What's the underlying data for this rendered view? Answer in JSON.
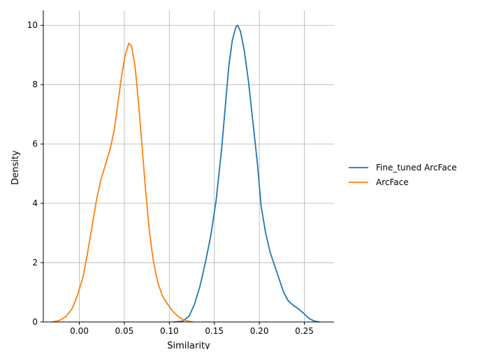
{
  "chart_data": {
    "type": "line",
    "title": "",
    "xlabel": "Similarity",
    "ylabel": "Density",
    "xlim": [
      -0.04,
      0.283
    ],
    "ylim": [
      0,
      10.5
    ],
    "grid": true,
    "legend_position": "right",
    "x_ticks": [
      0.0,
      0.05,
      0.1,
      0.15,
      0.2,
      0.25
    ],
    "x_tick_labels": [
      "0.00",
      "0.05",
      "0.10",
      "0.15",
      "0.20",
      "0.25"
    ],
    "y_ticks": [
      0,
      2,
      4,
      6,
      8,
      10
    ],
    "y_tick_labels": [
      "0",
      "2",
      "4",
      "6",
      "8",
      "10"
    ],
    "series": [
      {
        "name": "Fine_tuned ArcFace",
        "color": "#1f77b4",
        "points": [
          [
            0.105,
            0.0
          ],
          [
            0.115,
            0.03
          ],
          [
            0.122,
            0.2
          ],
          [
            0.128,
            0.6
          ],
          [
            0.134,
            1.2
          ],
          [
            0.14,
            2.0
          ],
          [
            0.146,
            2.9
          ],
          [
            0.152,
            4.1
          ],
          [
            0.158,
            5.8
          ],
          [
            0.162,
            7.2
          ],
          [
            0.166,
            8.6
          ],
          [
            0.17,
            9.5
          ],
          [
            0.174,
            9.95
          ],
          [
            0.176,
            10.0
          ],
          [
            0.179,
            9.8
          ],
          [
            0.183,
            9.2
          ],
          [
            0.188,
            8.1
          ],
          [
            0.193,
            6.7
          ],
          [
            0.198,
            5.3
          ],
          [
            0.202,
            3.9
          ],
          [
            0.207,
            3.0
          ],
          [
            0.212,
            2.35
          ],
          [
            0.217,
            1.9
          ],
          [
            0.222,
            1.45
          ],
          [
            0.227,
            1.0
          ],
          [
            0.232,
            0.72
          ],
          [
            0.237,
            0.58
          ],
          [
            0.243,
            0.45
          ],
          [
            0.249,
            0.3
          ],
          [
            0.255,
            0.12
          ],
          [
            0.261,
            0.03
          ],
          [
            0.267,
            0.0
          ]
        ]
      },
      {
        "name": "ArcFace",
        "color": "#ff7f0e",
        "points": [
          [
            -0.03,
            0.0
          ],
          [
            -0.022,
            0.05
          ],
          [
            -0.015,
            0.18
          ],
          [
            -0.008,
            0.45
          ],
          [
            -0.002,
            0.9
          ],
          [
            0.004,
            1.5
          ],
          [
            0.009,
            2.3
          ],
          [
            0.014,
            3.2
          ],
          [
            0.019,
            4.1
          ],
          [
            0.024,
            4.8
          ],
          [
            0.029,
            5.3
          ],
          [
            0.034,
            5.8
          ],
          [
            0.039,
            6.5
          ],
          [
            0.043,
            7.4
          ],
          [
            0.047,
            8.3
          ],
          [
            0.051,
            9.0
          ],
          [
            0.055,
            9.4
          ],
          [
            0.058,
            9.3
          ],
          [
            0.062,
            8.6
          ],
          [
            0.066,
            7.3
          ],
          [
            0.07,
            5.8
          ],
          [
            0.074,
            4.3
          ],
          [
            0.078,
            3.0
          ],
          [
            0.082,
            2.1
          ],
          [
            0.087,
            1.35
          ],
          [
            0.092,
            0.9
          ],
          [
            0.098,
            0.6
          ],
          [
            0.104,
            0.35
          ],
          [
            0.11,
            0.18
          ],
          [
            0.116,
            0.07
          ],
          [
            0.122,
            0.02
          ],
          [
            0.126,
            0.0
          ]
        ]
      }
    ]
  }
}
